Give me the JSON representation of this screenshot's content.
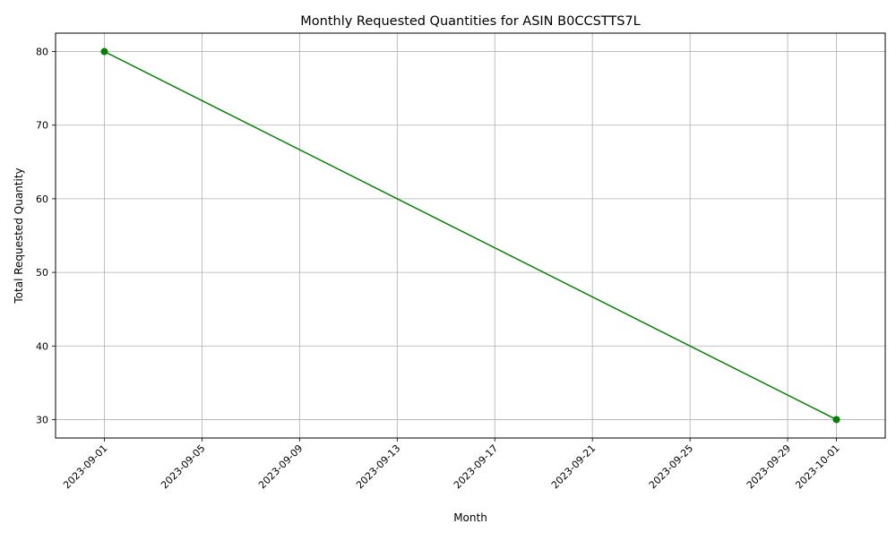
{
  "chart_data": {
    "type": "line",
    "title": "Monthly Requested Quantities for ASIN B0CCSTTS7L",
    "xlabel": "Month",
    "ylabel": "Total Requested Quantity",
    "x_ticks": [
      "2023-09-01",
      "2023-09-05",
      "2023-09-09",
      "2023-09-13",
      "2023-09-17",
      "2023-09-21",
      "2023-09-25",
      "2023-09-29",
      "2023-10-01"
    ],
    "y_ticks": [
      30,
      40,
      50,
      60,
      70,
      80
    ],
    "xlim": [
      "2023-08-30",
      "2023-10-03"
    ],
    "ylim": [
      27.5,
      82.5
    ],
    "grid": true,
    "x_tick_rotation": "45 degrees",
    "series": [
      {
        "x": [
          "2023-09-01",
          "2023-10-01"
        ],
        "values": [
          80,
          30
        ],
        "color": "#008000",
        "marker": "circle"
      }
    ]
  }
}
